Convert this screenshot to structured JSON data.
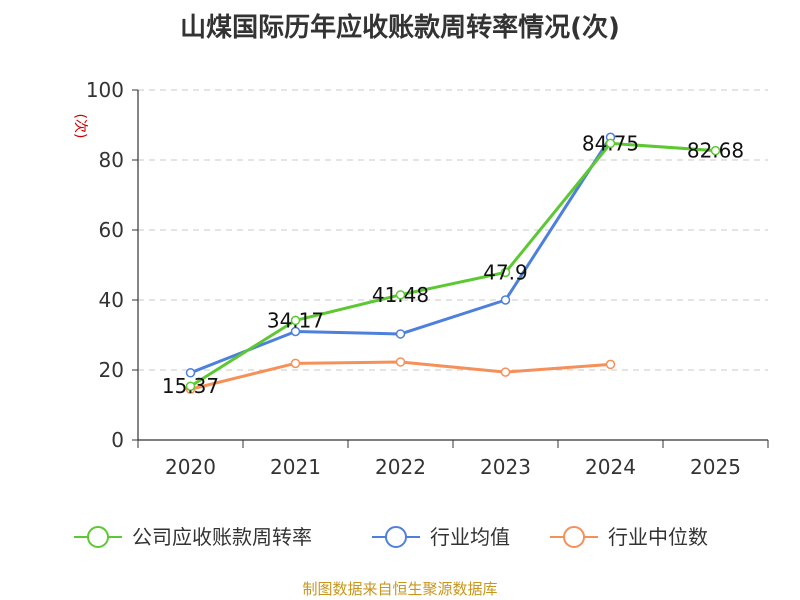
{
  "chart_data": {
    "type": "line",
    "title": "山煤国际历年应收账款周转率情况(次)",
    "ylabel": "(次)",
    "xlabel": "",
    "categories": [
      "2020",
      "2021",
      "2022",
      "2023",
      "2024",
      "2025"
    ],
    "ylim": [
      0,
      100
    ],
    "yticks": [
      0,
      20,
      40,
      60,
      80,
      100
    ],
    "grid": true,
    "legend_position": "bottom",
    "series": [
      {
        "name": "公司应收账款周转率",
        "color": "#5cc832",
        "values": [
          15.37,
          34.17,
          41.48,
          47.9,
          84.75,
          82.68
        ],
        "labels": [
          "15.37",
          "34.17",
          "41.48",
          "47.9",
          "84.75",
          "82.68"
        ]
      },
      {
        "name": "行业均值",
        "color": "#4d7fdc",
        "values": [
          19.2,
          31.0,
          30.3,
          40.0,
          86.5,
          null
        ],
        "labels": []
      },
      {
        "name": "行业中位数",
        "color": "#f5905a",
        "values": [
          14.5,
          21.9,
          22.3,
          19.4,
          21.6,
          null
        ],
        "labels": []
      }
    ],
    "source": "制图数据来自恒生聚源数据库"
  }
}
